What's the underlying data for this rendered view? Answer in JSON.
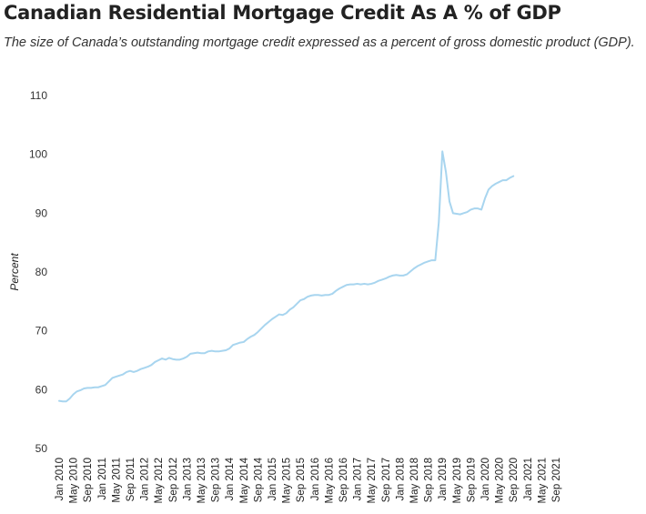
{
  "chart_data": {
    "type": "line",
    "title": "Canadian Residential Mortgage Credit As A % of GDP",
    "subtitle": "The size of Canada’s outstanding mortgage credit expressed as a percent of gross domestic product (GDP).",
    "xlabel": "",
    "ylabel": "Percent",
    "ylim": [
      50,
      110
    ],
    "yticks": [
      50,
      60,
      70,
      80,
      90,
      100,
      110
    ],
    "grid": false,
    "line_color": "#a8d5ef",
    "x_start": "Jan 2010",
    "x_tick_labels": [
      "Jan 2010",
      "May 2010",
      "Sep 2010",
      "Jan 2011",
      "May 2011",
      "Sep 2011",
      "Jan 2012",
      "May 2012",
      "Sep 2012",
      "Jan 2013",
      "May 2013",
      "Sep 2013",
      "Jan 2014",
      "May 2014",
      "Sep 2014",
      "Jan 2015",
      "May 2015",
      "Sep 2015",
      "Jan 2016",
      "May 2016",
      "Sep 2016",
      "Jan 2017",
      "May 2017",
      "Sep 2017",
      "Jan 2018",
      "May 2018",
      "Sep 2018",
      "Jan 2019",
      "May 2019",
      "Sep 2019",
      "Jan 2020",
      "May 2020",
      "Sep 2020",
      "Jan 2021",
      "May 2021",
      "Sep 2021"
    ],
    "series": [
      {
        "name": "",
        "values": [
          58.1,
          58.0,
          58.0,
          58.5,
          59.2,
          59.7,
          59.9,
          60.2,
          60.3,
          60.3,
          60.4,
          60.4,
          60.6,
          60.8,
          61.4,
          62.0,
          62.2,
          62.4,
          62.6,
          63.0,
          63.2,
          63.0,
          63.2,
          63.5,
          63.7,
          63.9,
          64.2,
          64.7,
          65.0,
          65.3,
          65.1,
          65.4,
          65.2,
          65.1,
          65.1,
          65.3,
          65.6,
          66.1,
          66.2,
          66.3,
          66.2,
          66.2,
          66.5,
          66.6,
          66.5,
          66.5,
          66.6,
          66.7,
          67.0,
          67.6,
          67.8,
          68.0,
          68.1,
          68.6,
          69.0,
          69.3,
          69.8,
          70.4,
          71.0,
          71.5,
          72.0,
          72.4,
          72.8,
          72.7,
          73.0,
          73.6,
          74.0,
          74.6,
          75.2,
          75.4,
          75.8,
          76.0,
          76.1,
          76.1,
          76.0,
          76.1,
          76.1,
          76.3,
          76.8,
          77.2,
          77.5,
          77.8,
          77.9,
          77.9,
          78.0,
          77.9,
          78.0,
          77.9,
          78.0,
          78.2,
          78.5,
          78.7,
          78.9,
          79.2,
          79.4,
          79.5,
          79.4,
          79.4,
          79.6,
          80.1,
          80.6,
          81.0,
          81.3,
          81.6,
          81.8,
          82.0,
          82.0,
          88.5,
          100.5,
          97.0,
          92.0,
          90.0,
          89.9,
          89.8,
          90.0,
          90.2,
          90.6,
          90.8,
          90.8,
          90.6,
          92.5,
          94.0,
          94.6,
          95.0,
          95.3,
          95.6,
          95.6,
          96.0,
          96.3
        ]
      }
    ]
  }
}
